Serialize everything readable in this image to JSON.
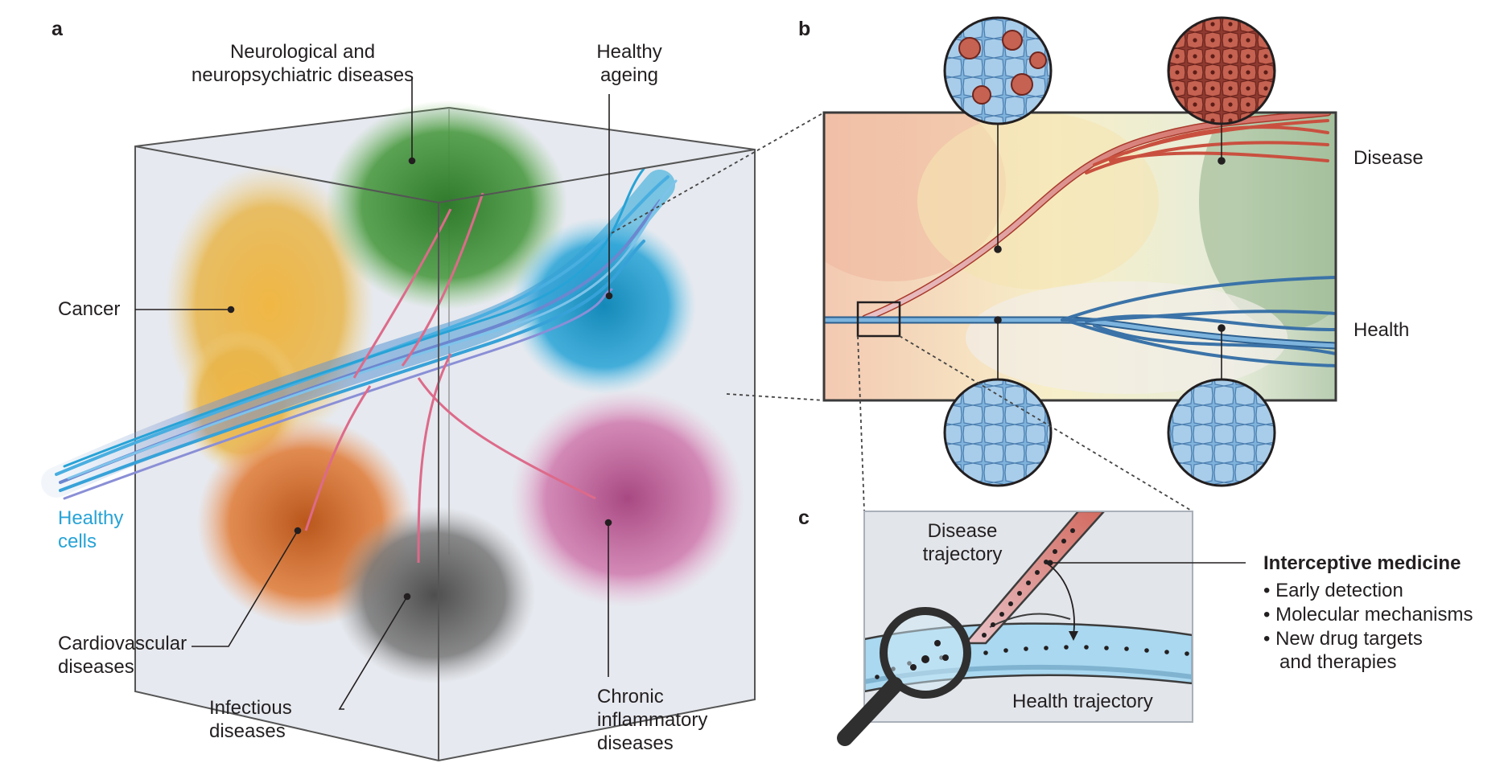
{
  "panels": {
    "a": "a",
    "b": "b",
    "c": "c"
  },
  "panel_a": {
    "labels": {
      "neuro": "Neurological and\nneuropsychiatric diseases",
      "ageing": "Healthy\nageing",
      "cancer": "Cancer",
      "healthy_cells": "Healthy\ncells",
      "cardio": "Cardiovascular\ndiseases",
      "infectious": "Infectious\ndiseases",
      "chronic": "Chronic\ninflammatory\ndiseases"
    }
  },
  "panel_b": {
    "labels": {
      "disease": "Disease",
      "health": "Health"
    }
  },
  "panel_c": {
    "labels": {
      "disease_trajectory": "Disease\ntrajectory",
      "health_trajectory": "Health trajectory"
    },
    "interceptive": {
      "title": "Interceptive medicine",
      "bullets": [
        "• Early detection",
        "• Molecular mechanisms",
        "• New drug targets\n   and therapies"
      ]
    }
  },
  "colors": {
    "cancer": "#e8b54a",
    "neuro": "#3f8f3a",
    "ageing": "#1f9bc9",
    "cardio": "#d86d2a",
    "infectious": "#6b6b6b",
    "chronic": "#c2649c",
    "healthy": "#27a3d6",
    "disease_red": "#c9503f",
    "health_blue": "#5b9fd0"
  }
}
